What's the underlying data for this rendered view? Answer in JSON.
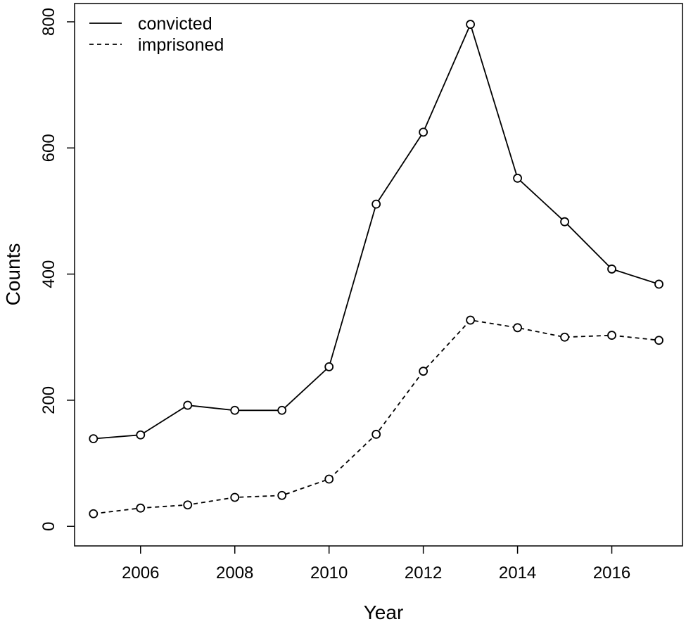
{
  "chart_data": {
    "type": "line",
    "title": "",
    "xlabel": "Year",
    "ylabel": "Counts",
    "x": [
      2005,
      2006,
      2007,
      2008,
      2009,
      2010,
      2011,
      2012,
      2013,
      2014,
      2015,
      2016,
      2017
    ],
    "series": [
      {
        "name": "convicted",
        "line_style": "solid",
        "marker": "open-circle",
        "values": [
          139,
          145,
          192,
          184,
          184,
          253,
          511,
          625,
          796,
          552,
          483,
          408,
          384
        ]
      },
      {
        "name": "imprisoned",
        "line_style": "dashed",
        "marker": "open-circle",
        "values": [
          20,
          29,
          34,
          46,
          49,
          75,
          146,
          246,
          327,
          315,
          300,
          303,
          295
        ]
      }
    ],
    "xlim": [
      2004.6,
      2017.5
    ],
    "ylim": [
      -31,
      829
    ],
    "x_ticks": [
      "2006",
      "2008",
      "2010",
      "2012",
      "2014",
      "2016"
    ],
    "y_ticks": [
      "0",
      "200",
      "400",
      "600",
      "800"
    ],
    "grid": false,
    "legend_position": "top-left",
    "colors": {
      "line": "#000000",
      "background": "#ffffff"
    }
  }
}
